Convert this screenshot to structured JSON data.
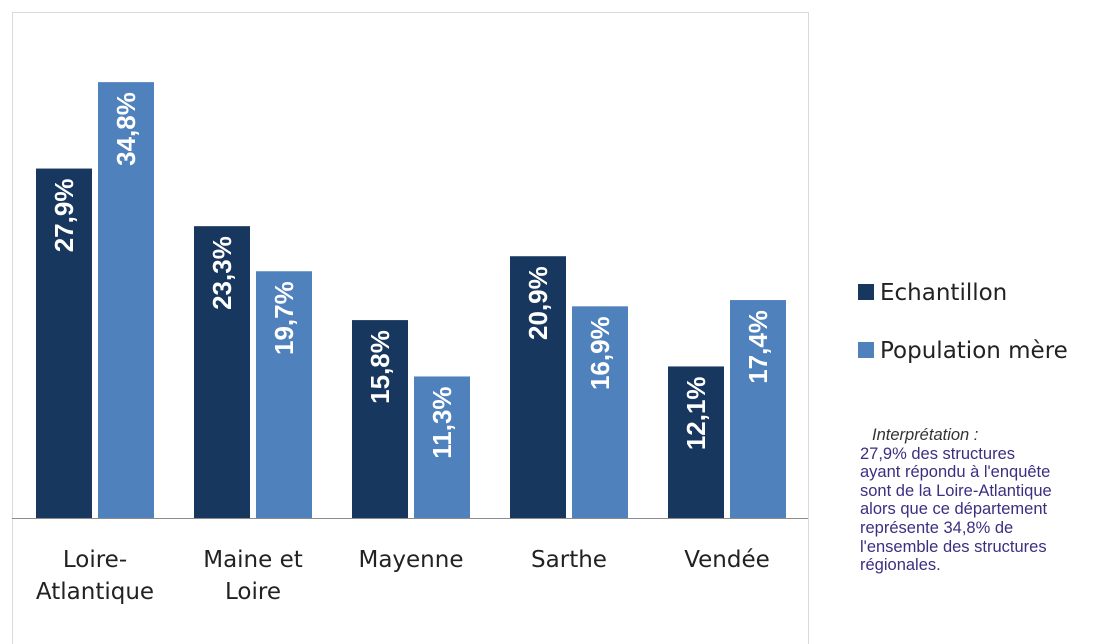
{
  "chart_data": {
    "type": "bar",
    "categories": [
      "Loire-Atlantique",
      "Maine et Loire",
      "Mayenne",
      "Sarthe",
      "Vendée"
    ],
    "series": [
      {
        "name": "Echantillon",
        "color": "#17375e",
        "values": [
          27.9,
          23.3,
          15.8,
          20.9,
          12.1
        ],
        "value_labels": [
          "27,9%",
          "23,3%",
          "15,8%",
          "20,9%",
          "12,1%"
        ]
      },
      {
        "name": "Population mère",
        "color": "#4f81bd",
        "values": [
          34.8,
          19.7,
          11.3,
          16.9,
          17.4
        ],
        "value_labels": [
          "34,8%",
          "19,7%",
          "11,3%",
          "16,9%",
          "17,4%"
        ]
      }
    ],
    "ylim": [
      0,
      40
    ],
    "legend": "right",
    "annotation_title": "Interprétation :",
    "annotation": [
      "27,9% des structures",
      "ayant répondu à l'enquête",
      "sont de la Loire-Atlantique",
      "alors que ce département",
      "représente 34,8% de",
      "l'ensemble des structures",
      "régionales."
    ]
  }
}
